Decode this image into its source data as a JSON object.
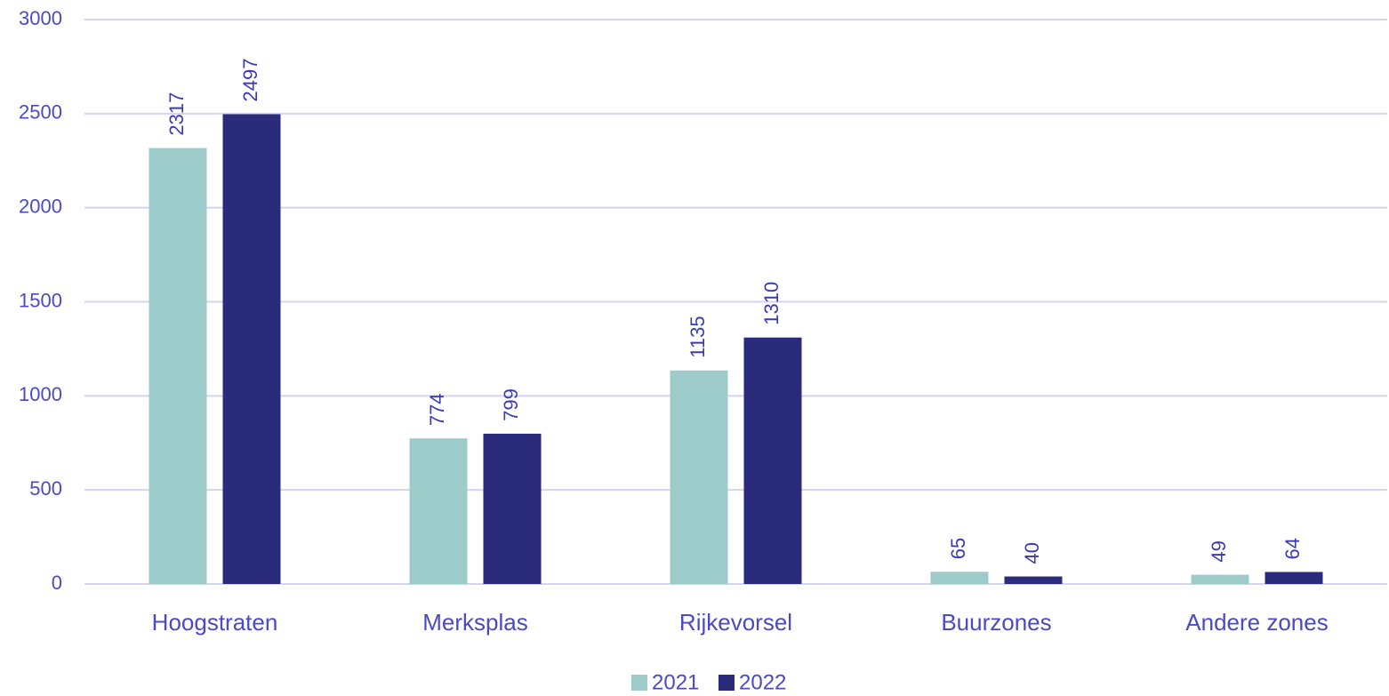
{
  "chart_data": {
    "type": "bar",
    "categories": [
      "Hoogstraten",
      "Merksplas",
      "Rijkevorsel",
      "Buurzones",
      "Andere zones"
    ],
    "series": [
      {
        "name": "2021",
        "color": "#9ccbca",
        "values": [
          2317,
          774,
          1135,
          65,
          49
        ]
      },
      {
        "name": "2022",
        "color": "#2b2b7b",
        "values": [
          2497,
          799,
          1310,
          40,
          64
        ]
      }
    ],
    "ylim": [
      0,
      3000
    ],
    "yticks": [
      0,
      500,
      1000,
      1500,
      2000,
      2500,
      3000
    ],
    "grid": true,
    "legend": "bottom"
  }
}
